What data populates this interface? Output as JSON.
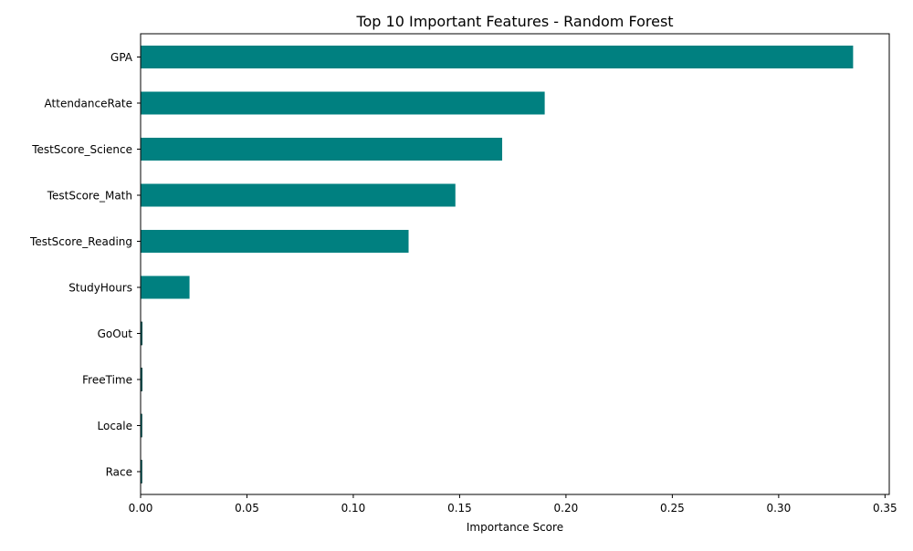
{
  "chart_data": {
    "type": "bar",
    "orientation": "horizontal",
    "title": "Top 10 Important Features - Random Forest",
    "xlabel": "Importance Score",
    "ylabel": "",
    "categories": [
      "GPA",
      "AttendanceRate",
      "TestScore_Science",
      "TestScore_Math",
      "TestScore_Reading",
      "StudyHours",
      "GoOut",
      "FreeTime",
      "Locale",
      "Race"
    ],
    "values": [
      0.335,
      0.19,
      0.17,
      0.148,
      0.126,
      0.023,
      0.0007,
      0.0007,
      0.0006,
      0.0006
    ],
    "xlim": [
      0,
      0.352
    ],
    "xticks": [
      0,
      0.05,
      0.1,
      0.15,
      0.2,
      0.25,
      0.3,
      0.35
    ],
    "xtick_labels": [
      "0.00",
      "0.05",
      "0.10",
      "0.15",
      "0.20",
      "0.25",
      "0.30",
      "0.35"
    ],
    "grid": false,
    "bar_color": "#008080"
  }
}
